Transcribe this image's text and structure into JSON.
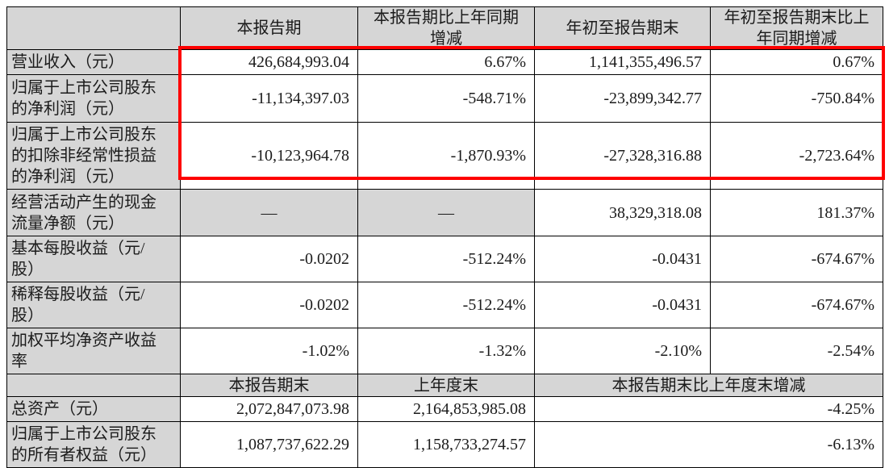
{
  "document": {
    "type": "financial-report-key-indicators-table",
    "language": "zh-CN"
  },
  "colors": {
    "header_bg": "#D6D6D6",
    "border": "#000000",
    "text": "#1B1B1B",
    "page_bg": "#FFFFFF",
    "annotation_red": "#FE0000"
  },
  "annotation": {
    "type": "highlight-rectangle",
    "color": "#FE0000",
    "covers": "data cells of first three rows (revenue and net profit rows)"
  },
  "table": {
    "header1": {
      "corner": "",
      "col1": "本报告期",
      "col2": "本报告期比上年同期增减",
      "col3": "年初至报告期末",
      "col4": "年初至报告期末比上年同期增减"
    },
    "section1_rows": [
      {
        "label": "营业收入（元）",
        "c1": "426,684,993.04",
        "c2": "6.67%",
        "c3": "1,141,355,496.57",
        "c4": "0.67%"
      },
      {
        "label": "归属于上市公司股东的净利润（元）",
        "c1": "-11,134,397.03",
        "c2": "-548.71%",
        "c3": "-23,899,342.77",
        "c4": "-750.84%"
      },
      {
        "label": "归属于上市公司股东的扣除非经常性损益的净利润（元）",
        "c1": "-10,123,964.78",
        "c2": "-1,870.93%",
        "c3": "-27,328,316.88",
        "c4": "-2,723.64%"
      },
      {
        "label": "经营活动产生的现金流量净额（元）",
        "c1": "—",
        "c2": "—",
        "c3": "38,329,318.08",
        "c4": "181.37%"
      },
      {
        "label": "基本每股收益（元/股）",
        "c1": "-0.0202",
        "c2": "-512.24%",
        "c3": "-0.0431",
        "c4": "-674.67%"
      },
      {
        "label": "稀释每股收益（元/股）",
        "c1": "-0.0202",
        "c2": "-512.24%",
        "c3": "-0.0431",
        "c4": "-674.67%"
      },
      {
        "label": "加权平均净资产收益率",
        "c1": "-1.02%",
        "c2": "-1.32%",
        "c3": "-2.10%",
        "c4": "-2.54%"
      }
    ],
    "header2": {
      "corner": "",
      "col1": "本报告期末",
      "col2": "上年度末",
      "col3_4": "本报告期末比上年度末增减"
    },
    "section2_rows": [
      {
        "label": "总资产（元）",
        "c1": "2,072,847,073.98",
        "c2": "2,164,853,985.08",
        "c3_4": "-4.25%"
      },
      {
        "label": "归属于上市公司股东的所有者权益（元）",
        "c1": "1,087,737,622.29",
        "c2": "1,158,733,274.57",
        "c3_4": "-6.13%"
      }
    ]
  }
}
